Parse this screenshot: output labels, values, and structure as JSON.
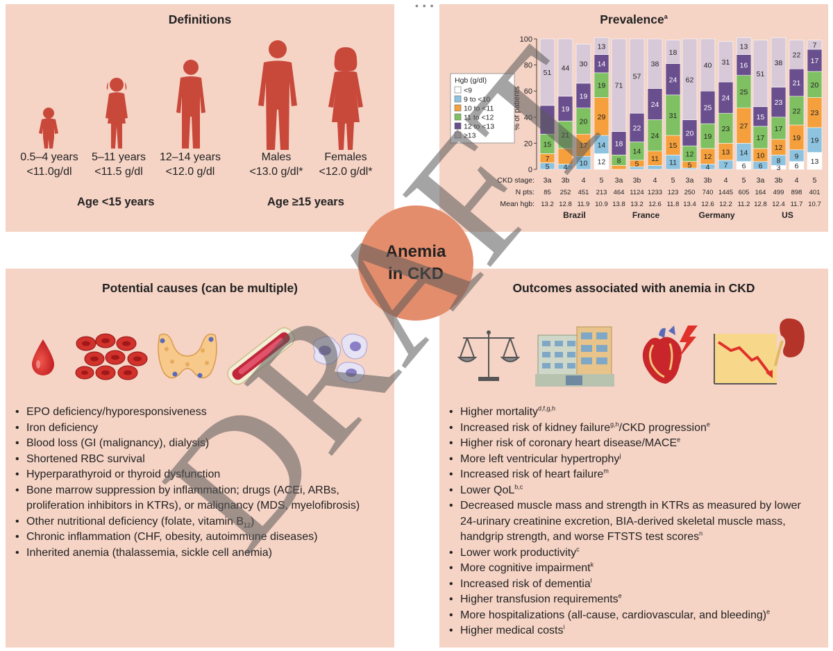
{
  "center": {
    "line1": "Anemia",
    "line2": "in CKD"
  },
  "watermark": "DRAFT",
  "definitions": {
    "title": "Definitions",
    "groups": [
      {
        "age": "0.5–4 years",
        "threshold": "<11.0g/dl"
      },
      {
        "age": "5–11 years",
        "threshold": "<11.5 g/dl"
      },
      {
        "age": "12–14 years",
        "threshold": "<12.0 g/dl"
      },
      {
        "age": "Males",
        "threshold": "<13.0 g/dl*"
      },
      {
        "age": "Females",
        "threshold": "<12.0 g/dl*"
      }
    ],
    "age_under": "Age <15 years",
    "age_over": "Age ≥15 years"
  },
  "prevalence": {
    "title": "Prevalence",
    "title_sup": "a",
    "legend_title": "Hgb (g/dl)",
    "ylabel": "% of patients",
    "row_labels": [
      "CKD stage:",
      "N pts:",
      "Mean hgb:"
    ]
  },
  "chart_data": {
    "type": "bar",
    "stacked": true,
    "ylim": [
      0,
      100
    ],
    "yticks": [
      0,
      20,
      40,
      60,
      80,
      100
    ],
    "series": [
      {
        "name": "<9",
        "color": "#ffffff"
      },
      {
        "name": "9 to <10",
        "color": "#8ec3e0"
      },
      {
        "name": "10 to <11",
        "color": "#f5a03c"
      },
      {
        "name": "11 to <12",
        "color": "#7fc062"
      },
      {
        "name": "12 to <13",
        "color": "#6a4f8e"
      },
      {
        "name": "≥13",
        "color": "#d8c9d8"
      }
    ],
    "countries": [
      {
        "name": "Brazil",
        "bars": [
          {
            "stage": "3a",
            "n": "85",
            "hgb": "13.2",
            "values": [
              0,
              5,
              7,
              15,
              22,
              51
            ],
            "labels": [
              "",
              "5",
              "7",
              "15",
              "",
              "51"
            ]
          },
          {
            "stage": "3b",
            "n": "252",
            "hgb": "12.8",
            "values": [
              0,
              4,
              12,
              21,
              19,
              44
            ],
            "labels": [
              "",
              "4",
              "",
              "21",
              "19",
              "44"
            ]
          },
          {
            "stage": "4",
            "n": "451",
            "hgb": "11.9",
            "values": [
              0,
              10,
              17,
              20,
              19,
              30
            ],
            "labels": [
              "",
              "10",
              "17",
              "20",
              "19",
              "30"
            ]
          },
          {
            "stage": "5",
            "n": "213",
            "hgb": "10.9",
            "values": [
              12,
              14,
              29,
              19,
              14,
              13
            ],
            "labels": [
              "12",
              "14",
              "29",
              "19",
              "14",
              "13"
            ]
          }
        ]
      },
      {
        "name": "France",
        "bars": [
          {
            "stage": "3a",
            "n": "464",
            "hgb": "13.8",
            "values": [
              0,
              0,
              3,
              8,
              18,
              71
            ],
            "labels": [
              "",
              "",
              "",
              "8",
              "18",
              "71"
            ]
          },
          {
            "stage": "3b",
            "n": "1124",
            "hgb": "13.2",
            "values": [
              0,
              2,
              5,
              14,
              22,
              57
            ],
            "labels": [
              "",
              "",
              "5",
              "14",
              "22",
              "57"
            ]
          },
          {
            "stage": "4",
            "n": "1233",
            "hgb": "12.6",
            "values": [
              0,
              3,
              11,
              24,
              24,
              38
            ],
            "labels": [
              "",
              "",
              "11",
              "24",
              "24",
              "38"
            ]
          },
          {
            "stage": "5",
            "n": "123",
            "hgb": "11.8",
            "values": [
              0,
              11,
              15,
              31,
              24,
              18
            ],
            "labels": [
              "",
              "11",
              "15",
              "31",
              "24",
              "18"
            ]
          }
        ]
      },
      {
        "name": "Germany",
        "bars": [
          {
            "stage": "3a",
            "n": "250",
            "hgb": "13.4",
            "values": [
              0,
              1,
              5,
              12,
              20,
              62
            ],
            "labels": [
              "",
              "",
              "5",
              "12",
              "20",
              "62"
            ]
          },
          {
            "stage": "3b",
            "n": "740",
            "hgb": "12.6",
            "values": [
              0,
              4,
              12,
              19,
              25,
              40
            ],
            "labels": [
              "",
              "4",
              "12",
              "19",
              "25",
              "40"
            ]
          },
          {
            "stage": "4",
            "n": "1445",
            "hgb": "12.2",
            "values": [
              0,
              7,
              13,
              23,
              24,
              31
            ],
            "labels": [
              "",
              "7",
              "13",
              "23",
              "24",
              "31"
            ]
          },
          {
            "stage": "5",
            "n": "605",
            "hgb": "11.2",
            "values": [
              6,
              14,
              27,
              25,
              16,
              13
            ],
            "labels": [
              "6",
              "14",
              "27",
              "25",
              "16",
              "13"
            ]
          }
        ]
      },
      {
        "name": "US",
        "bars": [
          {
            "stage": "3a",
            "n": "164",
            "hgb": "12.8",
            "values": [
              0,
              6,
              10,
              17,
              15,
              51
            ],
            "labels": [
              "",
              "6",
              "10",
              "17",
              "15",
              "51"
            ]
          },
          {
            "stage": "3b",
            "n": "499",
            "hgb": "12.4",
            "values": [
              3,
              8,
              12,
              17,
              23,
              38
            ],
            "labels": [
              "3",
              "8",
              "12",
              "17",
              "23",
              "38"
            ]
          },
          {
            "stage": "4",
            "n": "898",
            "hgb": "11.7",
            "values": [
              6,
              9,
              19,
              22,
              21,
              22
            ],
            "labels": [
              "6",
              "9",
              "19",
              "22",
              "21",
              "22"
            ]
          },
          {
            "stage": "5",
            "n": "401",
            "hgb": "10.7",
            "values": [
              13,
              19,
              23,
              20,
              17,
              7
            ],
            "labels": [
              "13",
              "19",
              "23",
              "20",
              "17",
              "7"
            ]
          }
        ]
      }
    ]
  },
  "causes": {
    "title": "Potential causes (can be multiple)",
    "items": [
      "EPO deficiency/hyporesponsiveness",
      "Iron deficiency",
      "Blood loss (GI (malignancy), dialysis)",
      "Shortened RBC survival",
      "Hyperparathyroid or thyroid dysfunction",
      "Bone marrow suppression by inflammation; drugs (ACEi, ARBs, proliferation inhibitors in KTRs), or malignancy (MDS, myelofibrosis)",
      "Chronic inflammation (CHF, obesity, autoimmune diseases)",
      "Inherited anemia (thalassemia, sickle cell anemia)"
    ],
    "vitamin_item": {
      "before": "Other nutritional deficiency (folate, vitamin B",
      "sub": "12",
      "after": ")"
    }
  },
  "outcomes": {
    "title": "Outcomes associated with anemia in CKD",
    "items": [
      {
        "text": "Higher mortality",
        "sup": "d,f,g,h"
      },
      {
        "text": "Increased risk of kidney failure",
        "sup": "g,h",
        "text2": "/CKD progression",
        "sup2": "e"
      },
      {
        "text": "Higher risk of coronary heart disease/MACE",
        "sup": "e"
      },
      {
        "text": "More left ventricular hypertrophy",
        "sup": "j"
      },
      {
        "text": "Increased risk of heart failure",
        "sup": "m"
      },
      {
        "text": "Lower QoL",
        "sup": "b,c"
      },
      {
        "text": "Decreased muscle mass and strength in KTRs as measured by lower 24-urinary creatinine excretion, BIA-derived skeletal muscle mass, handgrip strength, and worse FTSTS test scores",
        "sup": "n"
      },
      {
        "text": "Lower work productivity",
        "sup": "c"
      },
      {
        "text": "More cognitive impairment",
        "sup": "k"
      },
      {
        "text": "Increased risk of dementia",
        "sup": "l"
      },
      {
        "text": "Higher transfusion requirements",
        "sup": "e"
      },
      {
        "text": "More hospitalizations (all-cause, cardiovascular, and bleeding)",
        "sup": "e"
      },
      {
        "text": "Higher medical costs",
        "sup": "i"
      }
    ]
  }
}
